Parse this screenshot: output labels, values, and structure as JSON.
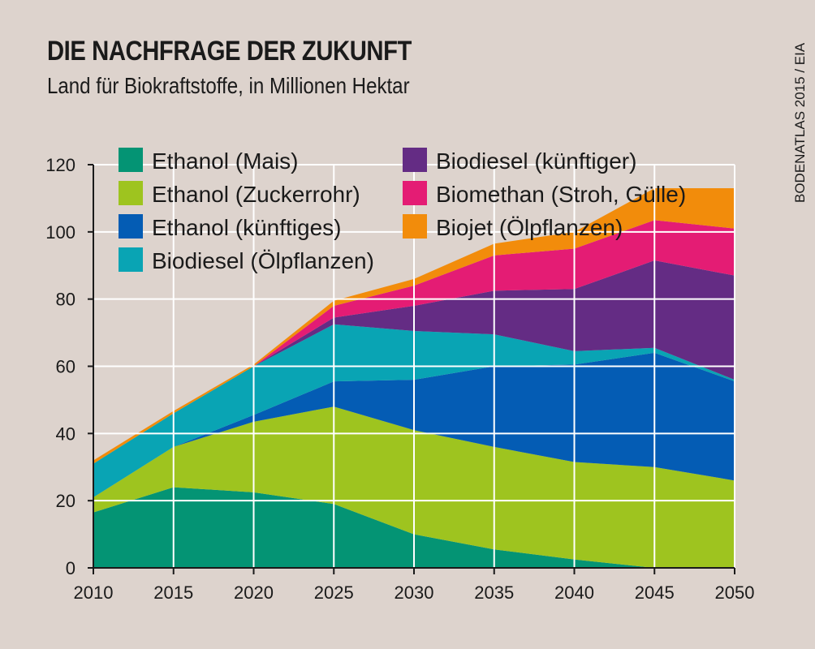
{
  "header": {
    "title": "DIE NACHFRAGE DER ZUKUNFT",
    "subtitle": "Land für Biokraftstoffe, in Millionen Hektar",
    "source": "BODENATLAS 2015 / EIA"
  },
  "chart_data": {
    "type": "area",
    "stacked": true,
    "title": "DIE NACHFRAGE DER ZUKUNFT",
    "subtitle": "Land für Biokraftstoffe, in Millionen Hektar",
    "xlabel": "",
    "ylabel": "",
    "x": [
      2010,
      2015,
      2020,
      2025,
      2030,
      2035,
      2040,
      2045,
      2050
    ],
    "xlim": [
      2010,
      2050
    ],
    "ylim": [
      0,
      120
    ],
    "x_ticks": [
      2010,
      2015,
      2020,
      2025,
      2030,
      2035,
      2040,
      2045,
      2050
    ],
    "y_ticks": [
      0,
      20,
      40,
      60,
      80,
      100,
      120
    ],
    "grid": true,
    "legend_position": "top-left, two columns",
    "series": [
      {
        "name": "Ethanol (Mais)",
        "color": "#049474",
        "values": [
          16.5,
          24,
          22.5,
          19,
          10,
          5.5,
          2.5,
          0,
          0
        ]
      },
      {
        "name": "Ethanol (Zuckerrohr)",
        "color": "#9ec41f",
        "values": [
          4.5,
          12,
          21,
          29,
          31,
          30.5,
          29,
          30,
          26
        ]
      },
      {
        "name": "Ethanol (künftiges)",
        "color": "#045cb4",
        "values": [
          0,
          0,
          2,
          7.5,
          15,
          24,
          29,
          34,
          29.5
        ]
      },
      {
        "name": "Biodiesel (Ölpflanzen)",
        "color": "#09a4b4",
        "values": [
          10,
          10,
          14.5,
          17,
          14.5,
          9.5,
          4,
          1.5,
          0.5
        ]
      },
      {
        "name": "Biodiesel (künftiger)",
        "color": "#642c84",
        "values": [
          0,
          0,
          0,
          2,
          7.5,
          13,
          18.5,
          26,
          31
        ]
      },
      {
        "name": "Biomethan (Stroh, Gülle)",
        "color": "#e41c74",
        "values": [
          0,
          0,
          0,
          3.5,
          6,
          10.5,
          12,
          12,
          14
        ]
      },
      {
        "name": "Biojet (Ölpflanzen)",
        "color": "#f28c0b",
        "values": [
          1,
          0.7,
          0.5,
          1.5,
          2,
          3.5,
          5,
          9.5,
          12
        ]
      }
    ]
  }
}
